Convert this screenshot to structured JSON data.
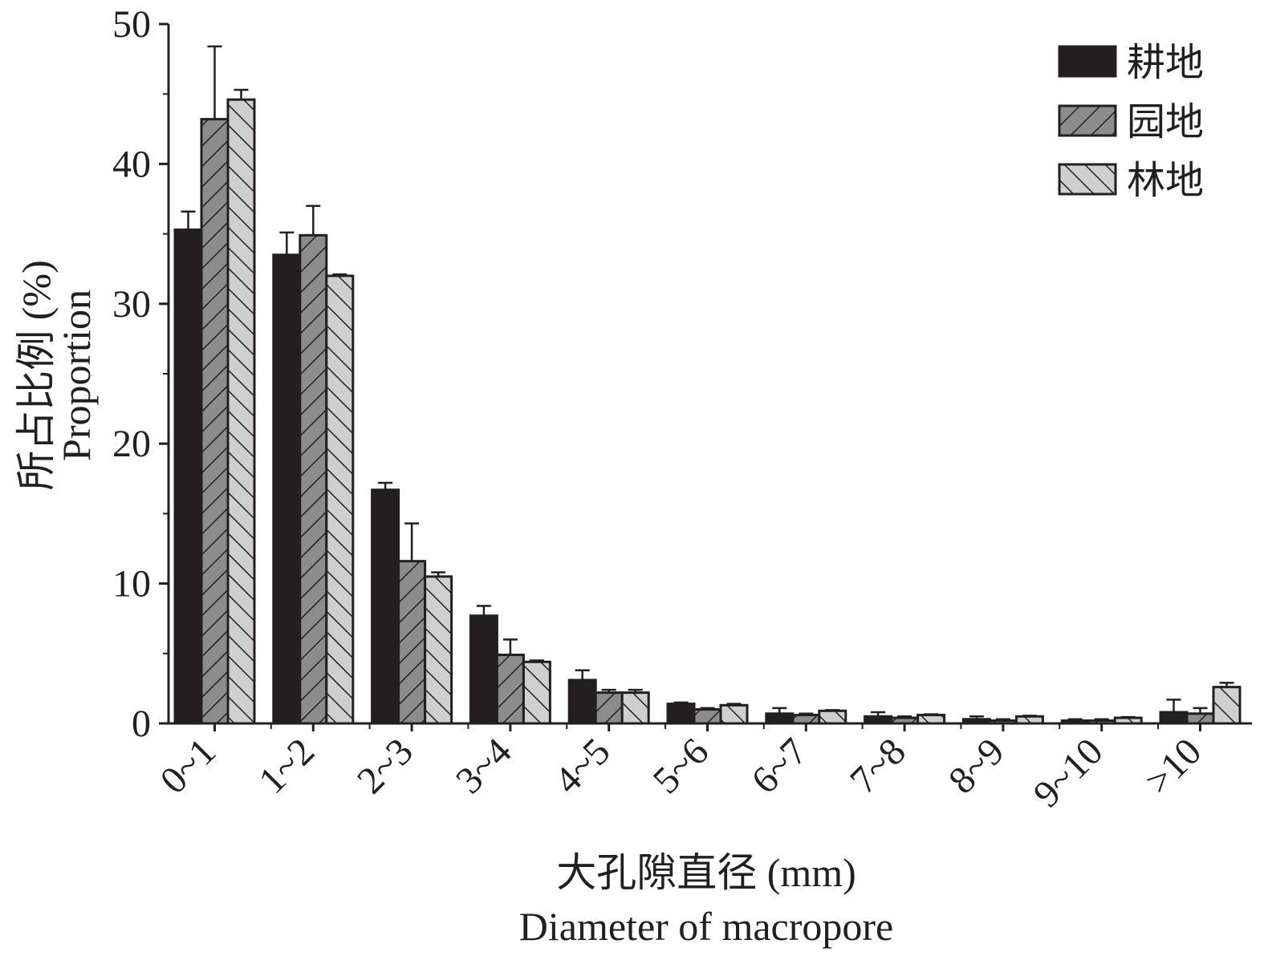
{
  "chart_data": {
    "type": "bar",
    "categories": [
      "0~1",
      "1~2",
      "2~3",
      "3~4",
      "4~5",
      "5~6",
      "6~7",
      "7~8",
      "8~9",
      "9~10",
      ">10"
    ],
    "series": [
      {
        "name": "耕地",
        "color": "#231f20",
        "pattern": "solid",
        "values": [
          35.3,
          33.5,
          16.7,
          7.7,
          3.1,
          1.4,
          0.7,
          0.5,
          0.3,
          0.2,
          0.8
        ],
        "errors": [
          1.3,
          1.6,
          0.5,
          0.7,
          0.7,
          0.1,
          0.4,
          0.3,
          0.2,
          0.1,
          0.9
        ]
      },
      {
        "name": "园地",
        "color": "#8c8c8c",
        "pattern": "hatch-forward",
        "values": [
          43.2,
          34.9,
          11.6,
          4.9,
          2.2,
          1.0,
          0.6,
          0.4,
          0.2,
          0.2,
          0.7
        ],
        "errors": [
          5.2,
          2.1,
          2.7,
          1.1,
          0.2,
          0.1,
          0.1,
          0.1,
          0.1,
          0.1,
          0.4
        ]
      },
      {
        "name": "林地",
        "color": "#cfcfcf",
        "pattern": "hatch-backward",
        "values": [
          44.6,
          32.0,
          10.5,
          4.4,
          2.2,
          1.3,
          0.9,
          0.6,
          0.5,
          0.4,
          2.6
        ],
        "errors": [
          0.7,
          0.1,
          0.3,
          0.1,
          0.2,
          0.1,
          0.05,
          0.05,
          0.05,
          0.05,
          0.3
        ]
      }
    ],
    "ylim": [
      0,
      50
    ],
    "yticks": [
      0,
      10,
      20,
      30,
      40,
      50
    ],
    "ylabel": "所占比例 (%)",
    "ylabel_en": "Proportion",
    "xlabel": "大孔隙直径 (mm)",
    "xlabel_en": "Diameter of macropore",
    "legend_position": "top-right",
    "error_bars": "upper"
  }
}
